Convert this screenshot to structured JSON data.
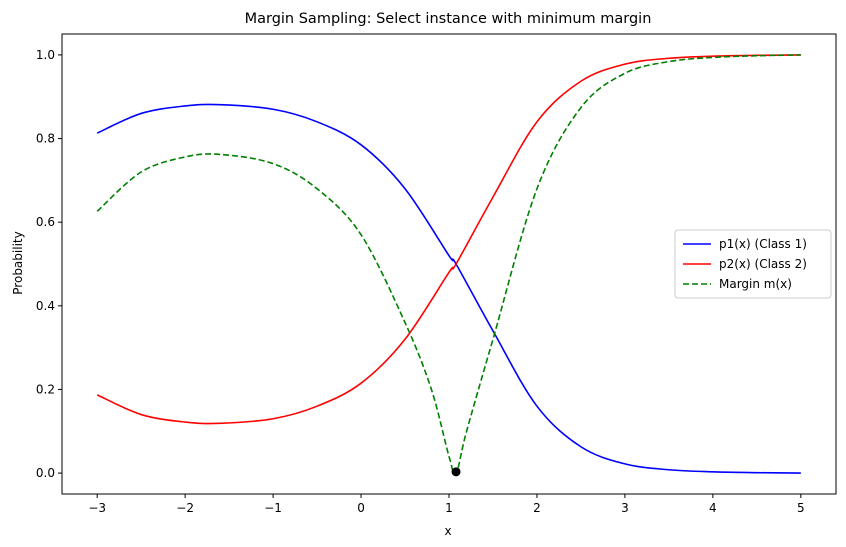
{
  "chart_data": {
    "type": "line",
    "title": "Margin Sampling: Select instance with minimum margin",
    "xlabel": "x",
    "ylabel": "Probability",
    "xlim": [
      -3.4,
      5.4
    ],
    "ylim": [
      -0.05,
      1.05
    ],
    "xticks": [
      -3,
      -2,
      -1,
      0,
      1,
      2,
      3,
      4,
      5
    ],
    "xtick_labels": [
      "−3",
      "−2",
      "−1",
      "0",
      "1",
      "2",
      "3",
      "4",
      "5"
    ],
    "yticks": [
      0.0,
      0.2,
      0.4,
      0.6,
      0.8,
      1.0
    ],
    "ytick_labels": [
      "0.0",
      "0.2",
      "0.4",
      "0.6",
      "0.8",
      "1.0"
    ],
    "grid": false,
    "legend_position": "center-right",
    "series": [
      {
        "name": "p1(x) (Class 1)",
        "color": "#0000ff",
        "dash": "solid",
        "x": [
          -3,
          -2.5,
          -2,
          -1.6,
          -1,
          -0.5,
          0,
          0.5,
          1,
          1.08,
          1.5,
          2,
          2.5,
          3,
          3.5,
          4,
          4.5,
          5
        ],
        "y": [
          0.813,
          0.86,
          0.878,
          0.881,
          0.87,
          0.84,
          0.785,
          0.68,
          0.52,
          0.5,
          0.34,
          0.16,
          0.063,
          0.022,
          0.008,
          0.003,
          0.001,
          0.0
        ]
      },
      {
        "name": "p2(x) (Class 2)",
        "color": "#ff0000",
        "dash": "solid",
        "x": [
          -3,
          -2.5,
          -2,
          -1.6,
          -1,
          -0.5,
          0,
          0.5,
          1,
          1.08,
          1.5,
          2,
          2.5,
          3,
          3.5,
          4,
          4.5,
          5
        ],
        "y": [
          0.187,
          0.14,
          0.122,
          0.119,
          0.13,
          0.16,
          0.215,
          0.32,
          0.48,
          0.5,
          0.66,
          0.84,
          0.937,
          0.978,
          0.992,
          0.997,
          0.999,
          1.0
        ]
      },
      {
        "name": "Margin m(x)",
        "color": "#008000",
        "dash": "dashed",
        "x": [
          -3,
          -2.5,
          -2,
          -1.6,
          -1,
          -0.5,
          0,
          0.5,
          0.8,
          1,
          1.08,
          1.2,
          1.5,
          2,
          2.5,
          3,
          3.5,
          4,
          4.5,
          5
        ],
        "y": [
          0.626,
          0.72,
          0.756,
          0.762,
          0.74,
          0.68,
          0.57,
          0.36,
          0.2,
          0.04,
          0.0,
          0.1,
          0.32,
          0.68,
          0.874,
          0.956,
          0.984,
          0.994,
          0.998,
          1.0
        ]
      }
    ],
    "points": [
      {
        "x": 1.08,
        "y": 0.003,
        "color": "#000000"
      }
    ]
  }
}
